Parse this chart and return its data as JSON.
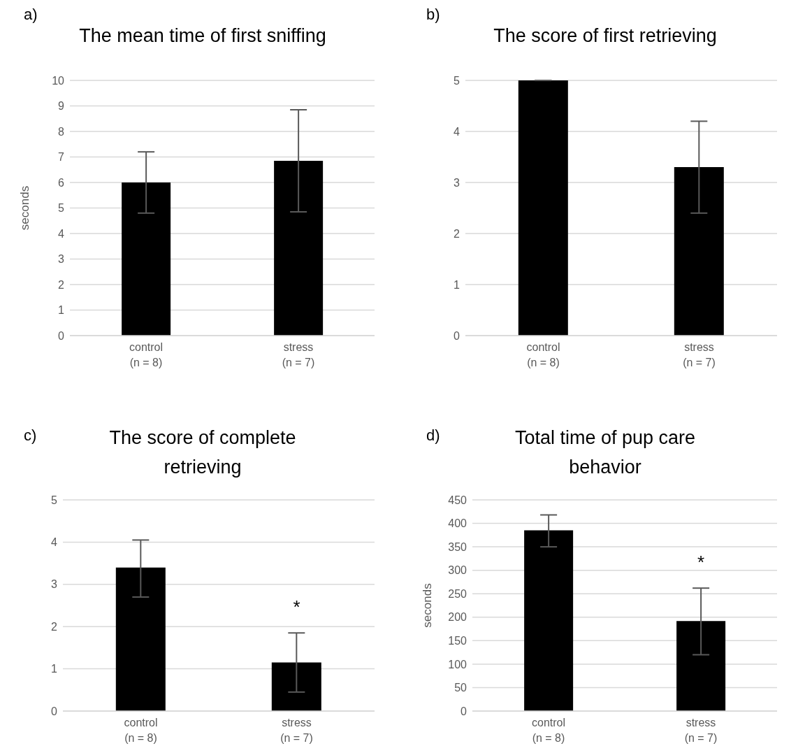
{
  "chart_data": [
    {
      "type": "bar",
      "title": "The mean time of first sniffing",
      "ylabel": "seconds",
      "annotations": [
        "a)"
      ],
      "categories": [
        "control\n(n = 8)",
        "stress\n(n = 7)"
      ],
      "values": [
        6.0,
        6.85
      ],
      "errors": [
        [
          4.8,
          7.2
        ],
        [
          4.85,
          8.85
        ]
      ],
      "color": "#000000",
      "ylim": [
        0,
        10
      ],
      "yticks": [
        0,
        1,
        2,
        3,
        4,
        5,
        6,
        7,
        8,
        9,
        10
      ],
      "grid": "y"
    },
    {
      "type": "bar",
      "title": "The score of first retrieving",
      "annotations": [
        "b)"
      ],
      "categories": [
        "control\n(n = 8)",
        "stress\n(n = 7)"
      ],
      "values": [
        5.0,
        3.3
      ],
      "errors": [
        [
          5.0,
          5.0
        ],
        [
          2.4,
          4.2
        ]
      ],
      "color": "#000000",
      "ylim": [
        0,
        5
      ],
      "yticks": [
        0,
        1,
        2,
        3,
        4,
        5
      ],
      "grid": "y"
    },
    {
      "type": "bar",
      "title": "The score of complete retrieving",
      "annotations": [
        "c)",
        "*"
      ],
      "categories": [
        "control\n(n = 8)",
        "stress\n(n = 7)"
      ],
      "values": [
        3.4,
        1.15
      ],
      "errors": [
        [
          2.7,
          4.05
        ],
        [
          0.45,
          1.85
        ]
      ],
      "color": "#000000",
      "ylim": [
        0,
        5
      ],
      "yticks": [
        0,
        1,
        2,
        3,
        4,
        5
      ],
      "grid": "y"
    },
    {
      "type": "bar",
      "title": "Total time of pup care behavior",
      "ylabel": "seconds",
      "annotations": [
        "d)",
        "*"
      ],
      "categories": [
        "control\n(n = 8)",
        "stress\n(n = 7)"
      ],
      "values": [
        385,
        192
      ],
      "errors": [
        [
          350,
          418
        ],
        [
          120,
          262
        ]
      ],
      "color": "#000000",
      "ylim": [
        0,
        450
      ],
      "yticks": [
        0,
        50,
        100,
        150,
        200,
        250,
        300,
        350,
        400,
        450
      ],
      "grid": "y"
    }
  ]
}
